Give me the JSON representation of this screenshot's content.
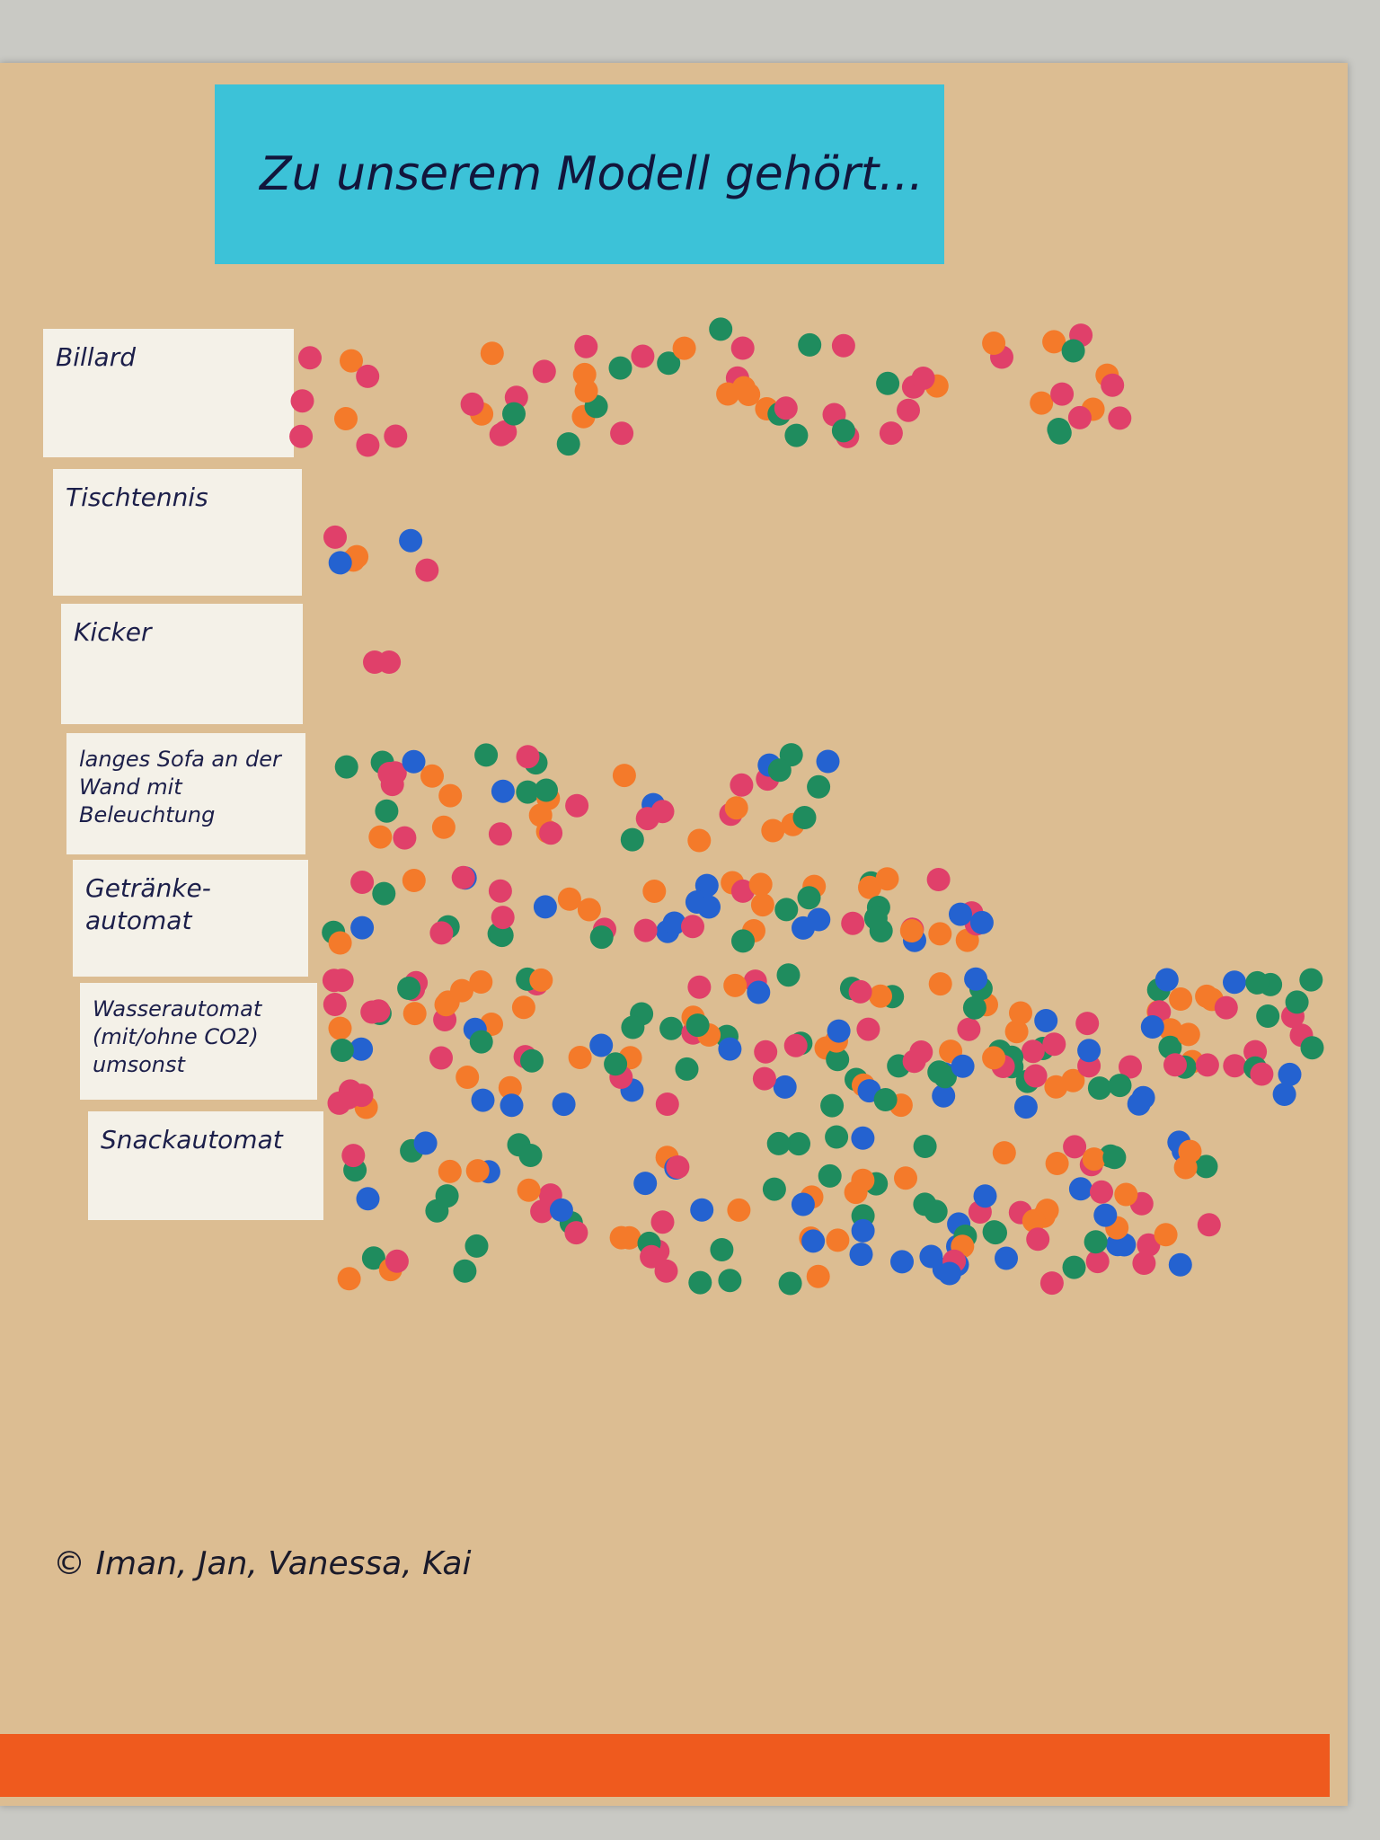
{
  "title": "Zu unserem Modell gehört...",
  "items": [
    "Billard",
    "Tischtennis",
    "Kicker",
    "langes Sofa an der Wand mit Beleuchtung",
    "Getränke-automat",
    "Wasserautomat (mit/ohne CO2) umsonst",
    "Snackautomat"
  ],
  "footer": "© Iman, Jan, Vanessa, Kai"
}
